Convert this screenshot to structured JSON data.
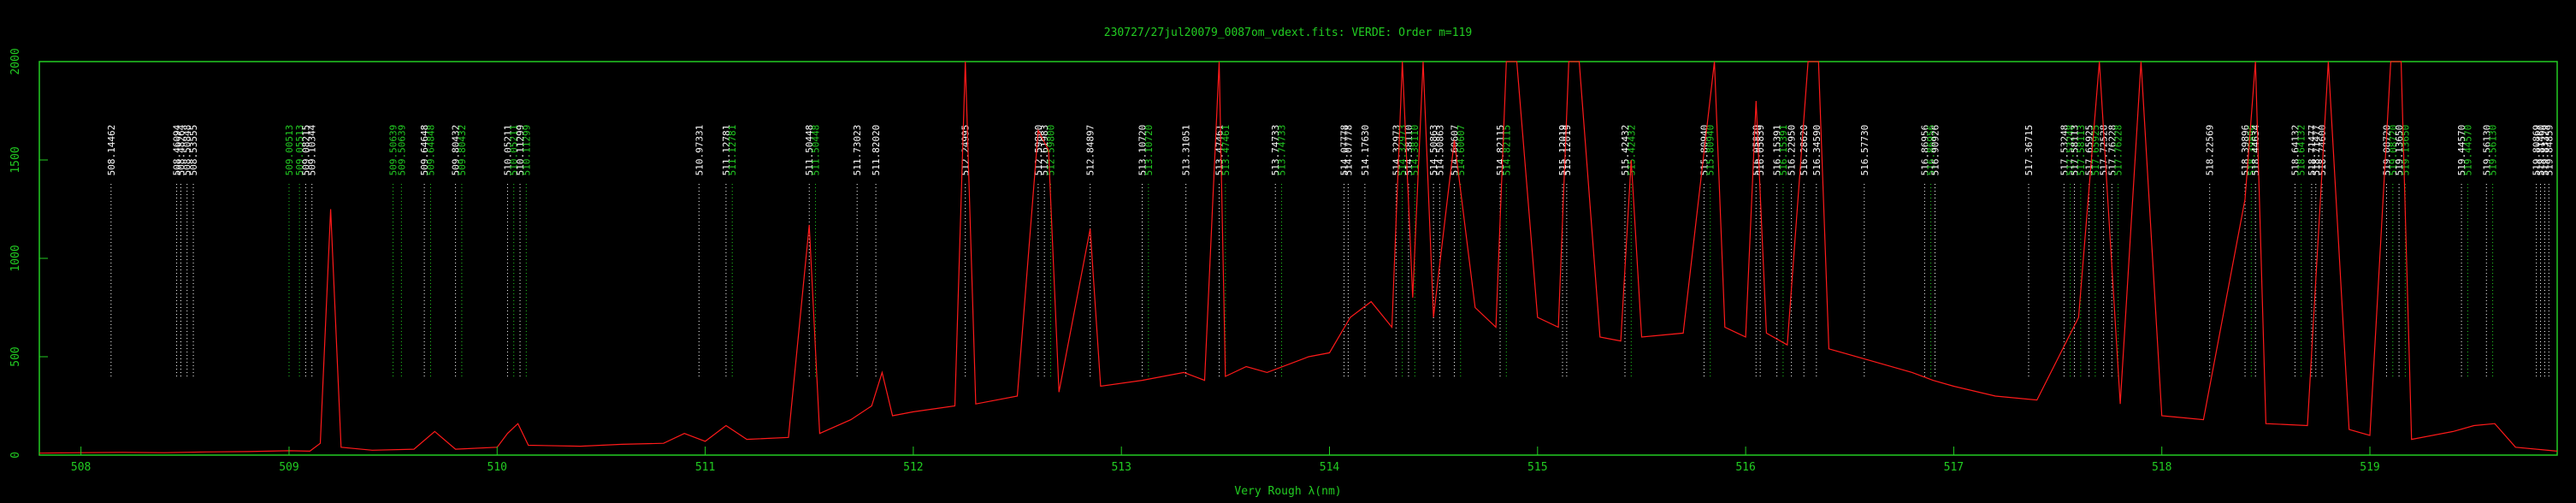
{
  "chart_data": {
    "type": "line",
    "title": "230727/27jul20079_0087om_vdext.fits: VERDE: Order m=119",
    "xlabel": "Very Rough λ(nm)",
    "ylabel": "",
    "xlim": [
      507.8,
      519.9
    ],
    "ylim": [
      0,
      2000
    ],
    "x_ticks": [
      508,
      509,
      510,
      511,
      512,
      513,
      514,
      515,
      516,
      517,
      518,
      519
    ],
    "y_ticks": [
      0,
      500,
      1000,
      1500,
      2000
    ],
    "grid": false,
    "colors": {
      "spectrum": "#ff1a1a",
      "axes": "#22cc22",
      "label_white": "#ffffff",
      "label_green": "#22cc22"
    },
    "series": [
      {
        "points": [
          [
            507.8,
            10
          ],
          [
            508.0,
            12
          ],
          [
            508.2,
            14
          ],
          [
            508.4,
            12
          ],
          [
            508.6,
            16
          ],
          [
            508.8,
            18
          ],
          [
            509.0,
            22
          ],
          [
            509.1,
            20
          ],
          [
            509.15,
            60
          ],
          [
            509.2,
            1250
          ],
          [
            509.25,
            40
          ],
          [
            509.4,
            25
          ],
          [
            509.6,
            30
          ],
          [
            509.7,
            120
          ],
          [
            509.8,
            30
          ],
          [
            510.0,
            40
          ],
          [
            510.05,
            110
          ],
          [
            510.1,
            160
          ],
          [
            510.15,
            50
          ],
          [
            510.4,
            45
          ],
          [
            510.6,
            55
          ],
          [
            510.8,
            60
          ],
          [
            510.9,
            110
          ],
          [
            511.0,
            70
          ],
          [
            511.1,
            150
          ],
          [
            511.2,
            80
          ],
          [
            511.4,
            90
          ],
          [
            511.5,
            1170
          ],
          [
            511.55,
            110
          ],
          [
            511.7,
            180
          ],
          [
            511.8,
            250
          ],
          [
            511.85,
            420
          ],
          [
            511.9,
            200
          ],
          [
            512.0,
            220
          ],
          [
            512.2,
            250
          ],
          [
            512.25,
            2000
          ],
          [
            512.3,
            260
          ],
          [
            512.5,
            300
          ],
          [
            512.6,
            1650
          ],
          [
            512.65,
            1550
          ],
          [
            512.7,
            320
          ],
          [
            512.85,
            1150
          ],
          [
            512.9,
            350
          ],
          [
            513.1,
            380
          ],
          [
            513.3,
            420
          ],
          [
            513.4,
            380
          ],
          [
            513.47,
            2000
          ],
          [
            513.5,
            400
          ],
          [
            513.6,
            450
          ],
          [
            513.7,
            420
          ],
          [
            513.9,
            500
          ],
          [
            514.0,
            520
          ],
          [
            514.1,
            700
          ],
          [
            514.2,
            780
          ],
          [
            514.3,
            650
          ],
          [
            514.35,
            2000
          ],
          [
            514.4,
            800
          ],
          [
            514.45,
            2000
          ],
          [
            514.5,
            700
          ],
          [
            514.6,
            1600
          ],
          [
            514.7,
            750
          ],
          [
            514.8,
            650
          ],
          [
            514.85,
            2000
          ],
          [
            514.9,
            2000
          ],
          [
            515.0,
            700
          ],
          [
            515.1,
            650
          ],
          [
            515.15,
            2000
          ],
          [
            515.2,
            2000
          ],
          [
            515.3,
            600
          ],
          [
            515.4,
            580
          ],
          [
            515.45,
            1500
          ],
          [
            515.5,
            600
          ],
          [
            515.7,
            620
          ],
          [
            515.85,
            2000
          ],
          [
            515.9,
            650
          ],
          [
            516.0,
            600
          ],
          [
            516.05,
            1800
          ],
          [
            516.1,
            620
          ],
          [
            516.2,
            560
          ],
          [
            516.3,
            2000
          ],
          [
            516.35,
            2000
          ],
          [
            516.4,
            540
          ],
          [
            516.6,
            480
          ],
          [
            516.8,
            420
          ],
          [
            516.9,
            380
          ],
          [
            517.0,
            350
          ],
          [
            517.2,
            300
          ],
          [
            517.4,
            280
          ],
          [
            517.6,
            700
          ],
          [
            517.7,
            2000
          ],
          [
            517.8,
            260
          ],
          [
            517.9,
            2000
          ],
          [
            518.0,
            200
          ],
          [
            518.2,
            180
          ],
          [
            518.4,
            1300
          ],
          [
            518.45,
            2000
          ],
          [
            518.5,
            160
          ],
          [
            518.7,
            150
          ],
          [
            518.8,
            2000
          ],
          [
            518.9,
            130
          ],
          [
            519.0,
            100
          ],
          [
            519.1,
            2000
          ],
          [
            519.15,
            2000
          ],
          [
            519.2,
            80
          ],
          [
            519.4,
            120
          ],
          [
            519.5,
            150
          ],
          [
            519.6,
            160
          ],
          [
            519.7,
            40
          ],
          [
            519.9,
            20
          ]
        ]
      }
    ],
    "line_labels": [
      {
        "x": 508.14462,
        "text": "508.14462",
        "color": "white"
      },
      {
        "x": 508.46,
        "text": "508.46094",
        "color": "white"
      },
      {
        "x": 508.48,
        "text": "508.48264",
        "color": "white"
      },
      {
        "x": 508.51,
        "text": "508.50848",
        "color": "white"
      },
      {
        "x": 508.54,
        "text": "508.53555",
        "color": "white"
      },
      {
        "x": 509.0,
        "text": "509.00513",
        "color": "green"
      },
      {
        "x": 509.05,
        "text": "509.05513",
        "color": "green"
      },
      {
        "x": 509.08,
        "text": "509.08215",
        "color": "white"
      },
      {
        "x": 509.11,
        "text": "509.10344",
        "color": "white"
      },
      {
        "x": 509.5,
        "text": "509.50639",
        "color": "green"
      },
      {
        "x": 509.54,
        "text": "509.50639",
        "color": "green"
      },
      {
        "x": 509.65,
        "text": "509.64648",
        "color": "white"
      },
      {
        "x": 509.68,
        "text": "509.64848",
        "color": "green"
      },
      {
        "x": 509.8,
        "text": "509.80432",
        "color": "white"
      },
      {
        "x": 509.83,
        "text": "509.80432",
        "color": "green"
      },
      {
        "x": 510.05,
        "text": "510.05211",
        "color": "white"
      },
      {
        "x": 510.08,
        "text": "510.05211",
        "color": "green"
      },
      {
        "x": 510.11,
        "text": "510.11299",
        "color": "white"
      },
      {
        "x": 510.14,
        "text": "510.11299",
        "color": "green"
      },
      {
        "x": 510.97,
        "text": "510.97331",
        "color": "white"
      },
      {
        "x": 511.1,
        "text": "511.12781",
        "color": "white"
      },
      {
        "x": 511.13,
        "text": "511.12781",
        "color": "green"
      },
      {
        "x": 511.5,
        "text": "511.50448",
        "color": "white"
      },
      {
        "x": 511.53,
        "text": "511.50448",
        "color": "green"
      },
      {
        "x": 511.73,
        "text": "511.73023",
        "color": "white"
      },
      {
        "x": 511.82,
        "text": "511.82020",
        "color": "white"
      },
      {
        "x": 512.25,
        "text": "512.24995",
        "color": "white"
      },
      {
        "x": 512.6,
        "text": "512.59800",
        "color": "white"
      },
      {
        "x": 512.63,
        "text": "512.61983",
        "color": "white"
      },
      {
        "x": 512.66,
        "text": "512.59800",
        "color": "green"
      },
      {
        "x": 512.85,
        "text": "512.84897",
        "color": "white"
      },
      {
        "x": 513.1,
        "text": "513.10720",
        "color": "white"
      },
      {
        "x": 513.13,
        "text": "513.10720",
        "color": "green"
      },
      {
        "x": 513.31,
        "text": "513.31051",
        "color": "white"
      },
      {
        "x": 513.47,
        "text": "513.47461",
        "color": "white"
      },
      {
        "x": 513.5,
        "text": "513.47461",
        "color": "green"
      },
      {
        "x": 513.74,
        "text": "513.74733",
        "color": "white"
      },
      {
        "x": 513.77,
        "text": "513.74733",
        "color": "green"
      },
      {
        "x": 514.07,
        "text": "514.07778",
        "color": "white"
      },
      {
        "x": 514.09,
        "text": "514.07778",
        "color": "white"
      },
      {
        "x": 514.17,
        "text": "514.17630",
        "color": "white"
      },
      {
        "x": 514.32,
        "text": "514.32973",
        "color": "white"
      },
      {
        "x": 514.35,
        "text": "514.32973",
        "color": "green"
      },
      {
        "x": 514.38,
        "text": "514.38110",
        "color": "white"
      },
      {
        "x": 514.41,
        "text": "514.38110",
        "color": "green"
      },
      {
        "x": 514.5,
        "text": "514.50863",
        "color": "white"
      },
      {
        "x": 514.53,
        "text": "514.50863",
        "color": "white"
      },
      {
        "x": 514.6,
        "text": "514.60607",
        "color": "white"
      },
      {
        "x": 514.63,
        "text": "514.60607",
        "color": "green"
      },
      {
        "x": 514.82,
        "text": "514.82115",
        "color": "white"
      },
      {
        "x": 514.85,
        "text": "514.82115",
        "color": "green"
      },
      {
        "x": 515.12,
        "text": "515.12019",
        "color": "white"
      },
      {
        "x": 515.14,
        "text": "515.12019",
        "color": "white"
      },
      {
        "x": 515.42,
        "text": "515.42432",
        "color": "white"
      },
      {
        "x": 515.45,
        "text": "515.42432",
        "color": "green"
      },
      {
        "x": 515.8,
        "text": "515.80940",
        "color": "white"
      },
      {
        "x": 515.83,
        "text": "515.80940",
        "color": "green"
      },
      {
        "x": 516.05,
        "text": "516.05839",
        "color": "white"
      },
      {
        "x": 516.07,
        "text": "516.05839",
        "color": "white"
      },
      {
        "x": 516.15,
        "text": "516.15391",
        "color": "white"
      },
      {
        "x": 516.18,
        "text": "516.15391",
        "color": "green"
      },
      {
        "x": 516.22,
        "text": "516.22950",
        "color": "white"
      },
      {
        "x": 516.28,
        "text": "516.28620",
        "color": "white"
      },
      {
        "x": 516.34,
        "text": "516.34590",
        "color": "white"
      },
      {
        "x": 516.57,
        "text": "516.57730",
        "color": "white"
      },
      {
        "x": 516.86,
        "text": "516.86956",
        "color": "white"
      },
      {
        "x": 516.89,
        "text": "516.86956",
        "color": "green"
      },
      {
        "x": 516.91,
        "text": "516.90926",
        "color": "white"
      },
      {
        "x": 517.36,
        "text": "517.36715",
        "color": "white"
      },
      {
        "x": 517.53,
        "text": "517.53248",
        "color": "white"
      },
      {
        "x": 517.56,
        "text": "517.53248",
        "color": "green"
      },
      {
        "x": 517.58,
        "text": "517.58113",
        "color": "white"
      },
      {
        "x": 517.61,
        "text": "517.58113",
        "color": "green"
      },
      {
        "x": 517.65,
        "text": "517.65925",
        "color": "white"
      },
      {
        "x": 517.68,
        "text": "517.65925",
        "color": "green"
      },
      {
        "x": 517.72,
        "text": "517.72528",
        "color": "white"
      },
      {
        "x": 517.76,
        "text": "517.76228",
        "color": "white"
      },
      {
        "x": 517.79,
        "text": "517.76228",
        "color": "green"
      },
      {
        "x": 518.23,
        "text": "518.22569",
        "color": "white"
      },
      {
        "x": 518.4,
        "text": "518.39896",
        "color": "white"
      },
      {
        "x": 518.43,
        "text": "518.39896",
        "color": "green"
      },
      {
        "x": 518.45,
        "text": "518.44634",
        "color": "white"
      },
      {
        "x": 518.64,
        "text": "518.64132",
        "color": "white"
      },
      {
        "x": 518.67,
        "text": "518.64132",
        "color": "green"
      },
      {
        "x": 518.72,
        "text": "518.71477",
        "color": "white"
      },
      {
        "x": 518.74,
        "text": "518.71477",
        "color": "white"
      },
      {
        "x": 518.77,
        "text": "518.74600",
        "color": "white"
      },
      {
        "x": 519.08,
        "text": "519.08720",
        "color": "white"
      },
      {
        "x": 519.11,
        "text": "519.08720",
        "color": "green"
      },
      {
        "x": 519.14,
        "text": "519.13650",
        "color": "white"
      },
      {
        "x": 519.17,
        "text": "519.13650",
        "color": "green"
      },
      {
        "x": 519.44,
        "text": "519.44570",
        "color": "white"
      },
      {
        "x": 519.47,
        "text": "519.44570",
        "color": "green"
      },
      {
        "x": 519.56,
        "text": "519.56130",
        "color": "white"
      },
      {
        "x": 519.59,
        "text": "519.56130",
        "color": "green"
      },
      {
        "x": 519.8,
        "text": "519.80869",
        "color": "white"
      },
      {
        "x": 519.82,
        "text": "519.81460",
        "color": "white"
      },
      {
        "x": 519.84,
        "text": "519.83329",
        "color": "white"
      },
      {
        "x": 519.86,
        "text": "519.84859",
        "color": "white"
      }
    ]
  }
}
